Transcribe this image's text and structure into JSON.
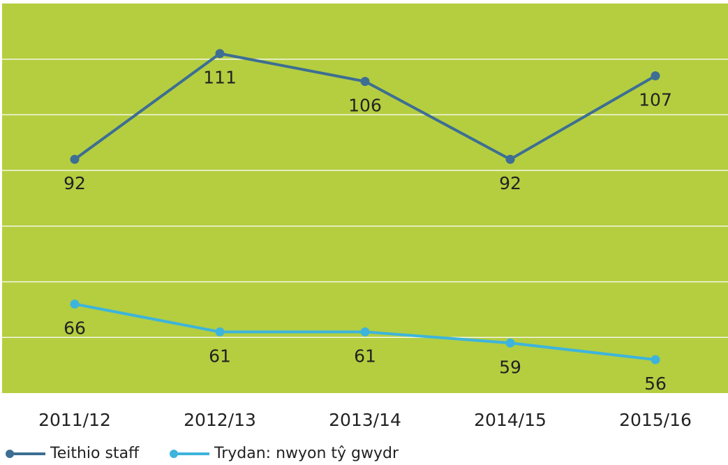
{
  "chart_data": {
    "type": "line",
    "categories": [
      "2011/12",
      "2012/13",
      "2013/14",
      "2014/15",
      "2015/16"
    ],
    "series": [
      {
        "name": "Teithio staff",
        "color": "#3d6e93",
        "values": [
          92,
          111,
          106,
          92,
          107
        ]
      },
      {
        "name": "Trydan: nwyon tŷ gwydr",
        "color": "#3db4dc",
        "values": [
          66,
          61,
          61,
          59,
          56
        ]
      }
    ],
    "ylim": [
      50,
      120
    ],
    "yticks": [
      60,
      70,
      80,
      90,
      100,
      110
    ],
    "grid": true,
    "background": "#b4ce40",
    "legend": "bottom"
  }
}
